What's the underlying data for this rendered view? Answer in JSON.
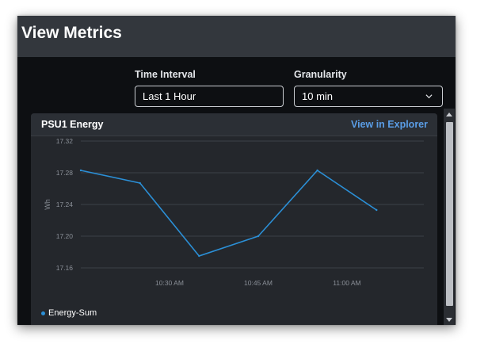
{
  "page": {
    "title": "View Metrics"
  },
  "controls": {
    "time_interval": {
      "label": "Time Interval",
      "value": "Last 1 Hour"
    },
    "granularity": {
      "label": "Granularity",
      "value": "10 min"
    }
  },
  "panel": {
    "title": "PSU1 Energy",
    "explorer_link": "View in Explorer"
  },
  "colors": {
    "line": "#2b8fd6",
    "link": "#5a9de6",
    "background": "#0d0f12",
    "panel": "#24272c"
  },
  "chart_data": {
    "type": "line",
    "title": "PSU1 Energy",
    "ylabel": "Wh",
    "xlabel": "",
    "ylim": [
      17.16,
      17.32
    ],
    "xlim": [
      "10:15 AM",
      "11:13 AM"
    ],
    "yticks": [
      "17.32",
      "17.28",
      "17.24",
      "17.20",
      "17.16"
    ],
    "xticks": [
      {
        "label": "10:30 AM",
        "minute": 30
      },
      {
        "label": "10:45 AM",
        "minute": 45
      },
      {
        "label": "11:00 AM",
        "minute": 60
      }
    ],
    "grid": true,
    "legend_position": "bottom-left",
    "series": [
      {
        "name": "Energy-Sum",
        "points": [
          {
            "x": "10:15 AM",
            "minute": 15,
            "y": 17.283
          },
          {
            "x": "10:25 AM",
            "minute": 25,
            "y": 17.267
          },
          {
            "x": "10:35 AM",
            "minute": 35,
            "y": 17.175
          },
          {
            "x": "10:45 AM",
            "minute": 45,
            "y": 17.2
          },
          {
            "x": "10:55 AM",
            "minute": 55,
            "y": 17.283
          },
          {
            "x": "11:05 AM",
            "minute": 65,
            "y": 17.233
          }
        ]
      }
    ]
  }
}
